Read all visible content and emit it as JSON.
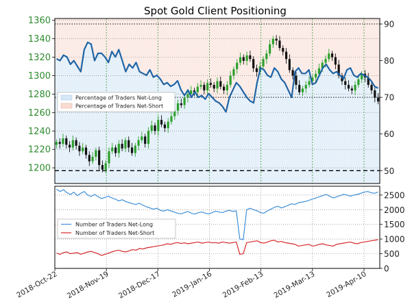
{
  "chart_data": [
    {
      "type": "line",
      "title": "Spot Gold Client Positioning",
      "x_labels": [
        "2018-Oct-22",
        "2018-Nov-19",
        "2018-Dec-17",
        "2019-Jan-16",
        "2019-Feb-13",
        "2019-Mar-13",
        "2019-Apr-10"
      ],
      "price_axis": {
        "ticks": [
          1200,
          1220,
          1240,
          1260,
          1280,
          1300,
          1320,
          1340,
          1360
        ],
        "range": [
          1183,
          1362
        ]
      },
      "percent_axis": {
        "ticks": [
          50,
          60,
          70,
          80,
          90
        ],
        "range": [
          46.5,
          91.5
        ]
      },
      "price_candles_close": [
        1228,
        1226,
        1232,
        1225,
        1222,
        1230,
        1224,
        1218,
        1222,
        1214,
        1207,
        1212,
        1219,
        1203,
        1198,
        1205,
        1218,
        1222,
        1216,
        1226,
        1221,
        1230,
        1222,
        1216,
        1224,
        1230,
        1234,
        1226,
        1240,
        1246,
        1240,
        1252,
        1247,
        1243,
        1250,
        1256,
        1262,
        1270,
        1268,
        1276,
        1280,
        1284,
        1282,
        1288,
        1290,
        1284,
        1292,
        1290,
        1286,
        1294,
        1288,
        1284,
        1290,
        1300,
        1307,
        1314,
        1320,
        1316,
        1322,
        1318,
        1308,
        1304,
        1310,
        1318,
        1324,
        1334,
        1340,
        1338,
        1330,
        1326,
        1318,
        1306,
        1300,
        1290,
        1282,
        1286,
        1290,
        1294,
        1298,
        1302,
        1308,
        1314,
        1318,
        1324,
        1320,
        1312,
        1300,
        1294,
        1290,
        1286,
        1284,
        1290,
        1296,
        1302,
        1298,
        1290,
        1284,
        1276,
        1272
      ],
      "percent_net_long": [
        80.5,
        80.0,
        81.5,
        81.0,
        79.0,
        80.0,
        78.5,
        77.0,
        83.0,
        85.0,
        84.5,
        80.0,
        82.0,
        82.0,
        81.0,
        79.5,
        82.5,
        81.0,
        83.0,
        80.0,
        77.0,
        79.0,
        78.0,
        79.5,
        77.0,
        76.5,
        76.0,
        77.5,
        75.5,
        76.0,
        75.0,
        73.5,
        74.0,
        73.0,
        73.5,
        74.5,
        72.0,
        70.5,
        72.0,
        70.0,
        71.5,
        70.0,
        70.5,
        69.5,
        71.0,
        70.0,
        69.0,
        68.5,
        67.5,
        66.0,
        70.0,
        72.0,
        74.0,
        73.0,
        71.5,
        70.0,
        69.0,
        68.5,
        74.0,
        78.0,
        77.5,
        76.0,
        75.5,
        78.0,
        77.0,
        75.0,
        74.0,
        72.0,
        70.0,
        77.0,
        78.0,
        76.5,
        76.5,
        77.5,
        73.5,
        74.0,
        76.0,
        78.0,
        79.0,
        77.5,
        76.5,
        77.0,
        76.0,
        75.0,
        77.5,
        78.0,
        76.0,
        75.5,
        76.5,
        76.0,
        75.5,
        74.5,
        73.0,
        72.5
      ],
      "reference_lines_percent": [
        50,
        70,
        90
      ],
      "legend": [
        "Percentage of Traders Net-Long",
        "Percentage of Traders Net-Short"
      ],
      "colors": {
        "candle_up": "#2ca02c",
        "candle_down": "#111111",
        "net_long_line": "#1f64a5",
        "net_long_fill": "#d6e8f7",
        "net_short_fill": "#f9dcd3"
      }
    },
    {
      "type": "line",
      "x_labels": [
        "2018-Oct-22",
        "2018-Nov-19",
        "2018-Dec-17",
        "2019-Jan-16",
        "2019-Feb-13",
        "2019-Mar-13",
        "2019-Apr-10"
      ],
      "y_axis": {
        "ticks": [
          0,
          500,
          1000,
          1500,
          2000,
          2500
        ],
        "range": [
          0,
          2800
        ]
      },
      "series": [
        {
          "name": "Number of Traders Net-Long",
          "color": "#3d8fd8",
          "values": [
            2700,
            2620,
            2680,
            2580,
            2520,
            2600,
            2480,
            2560,
            2620,
            2500,
            2450,
            2520,
            2440,
            2380,
            2420,
            2460,
            2400,
            2360,
            2300,
            2340,
            2280,
            2240,
            2200,
            2180,
            2220,
            2150,
            2100,
            2060,
            2020,
            2050,
            1980,
            1950,
            2000,
            1960,
            1920,
            1880,
            1860,
            1900,
            1940,
            1880,
            1850,
            1900,
            1920,
            1880,
            1860,
            1900,
            1950,
            1920,
            1900,
            1950,
            1980,
            1940,
            1960,
            1000,
            980,
            2000,
            2050,
            2000,
            1960,
            1900,
            1880,
            1960,
            2020,
            2080,
            2120,
            2060,
            2100,
            2150,
            2200,
            2180,
            2240,
            2260,
            2280,
            2320,
            2360,
            2400,
            2440,
            2480,
            2520,
            2460,
            2400,
            2440,
            2480,
            2520,
            2500,
            2460,
            2500,
            2520,
            2560,
            2600,
            2620,
            2580,
            2560,
            2600
          ]
        },
        {
          "name": "Number of Traders Net-Short",
          "color": "#d62728",
          "values": [
            520,
            480,
            540,
            560,
            500,
            520,
            540,
            480,
            520,
            560,
            580,
            540,
            500,
            440,
            480,
            520,
            560,
            600,
            620,
            580,
            560,
            600,
            640,
            620,
            680,
            660,
            700,
            720,
            740,
            760,
            780,
            800,
            840,
            820,
            860,
            880,
            850,
            870,
            840,
            860,
            880,
            900,
            860,
            880,
            900,
            870,
            880,
            860,
            900,
            880,
            860,
            880,
            900,
            480,
            500,
            880,
            900,
            920,
            940,
            880,
            860,
            900,
            940,
            960,
            900,
            920,
            880,
            860,
            840,
            820,
            760,
            780,
            800,
            820,
            760,
            780,
            820,
            840,
            800,
            780,
            760,
            820,
            840,
            860,
            880,
            900,
            860,
            840,
            880,
            900,
            920,
            940,
            960,
            980
          ]
        }
      ],
      "legend": [
        "Number of Traders Net-Long",
        "Number of Traders Net-Short"
      ]
    }
  ]
}
